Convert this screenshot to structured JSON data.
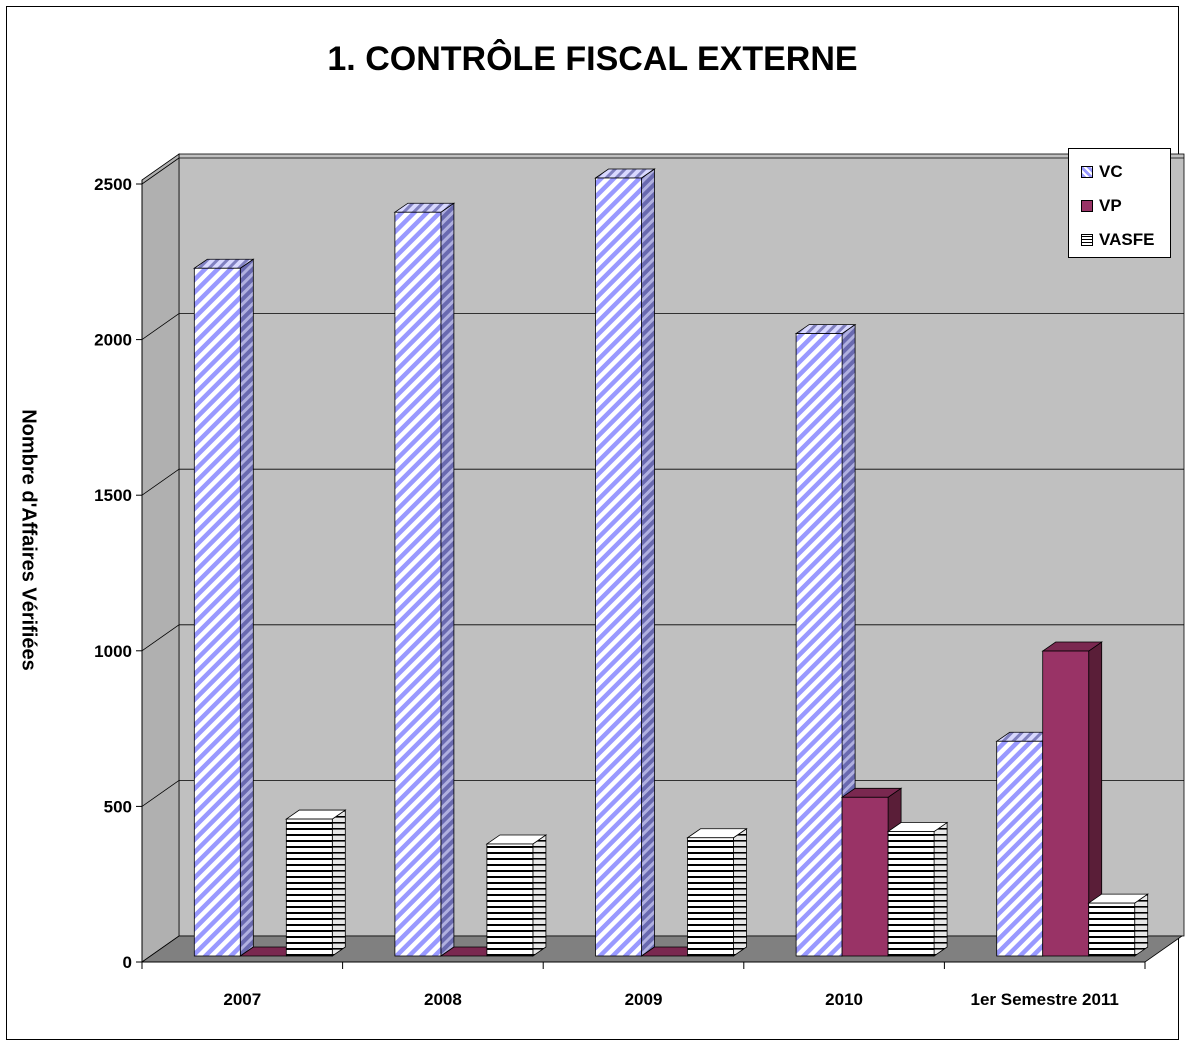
{
  "chart_data": {
    "type": "bar",
    "title": "1. CONTRÔLE FISCAL EXTERNE",
    "ylabel": "Nombre d'Affaires Vérifiées",
    "xlabel": "",
    "categories": [
      "2007",
      "2008",
      "2009",
      "2010",
      "1er Semestre 2011"
    ],
    "series": [
      {
        "name": "VC",
        "values": [
          2210,
          2390,
          2500,
          2000,
          690
        ],
        "color": "#9999ff",
        "pattern": "diagonal-stripes"
      },
      {
        "name": "VP",
        "values": [
          0,
          0,
          0,
          510,
          980
        ],
        "color": "#993366",
        "pattern": "solid"
      },
      {
        "name": "VASFE",
        "values": [
          440,
          360,
          380,
          400,
          170
        ],
        "color": "#ffffff",
        "pattern": "horizontal-stripes"
      }
    ],
    "ylim": [
      0,
      2500
    ],
    "yticks": [
      "0",
      "500",
      "1000",
      "1500",
      "2000",
      "2500"
    ],
    "grid": true,
    "legend_position": "top-right",
    "style": "3d-clustered-column",
    "wall_color": "#c0c0c0",
    "floor_color": "#808080"
  }
}
